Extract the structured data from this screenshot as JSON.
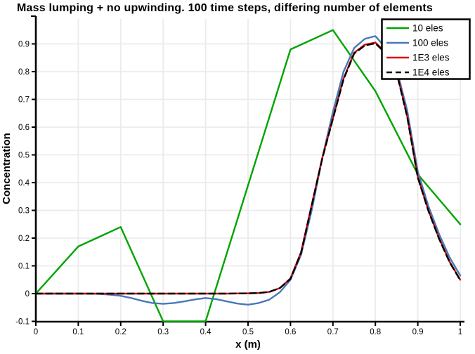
{
  "chart_data": {
    "type": "line",
    "title": "Mass lumping + no upwinding.  100 time steps, differing number of elements",
    "xlabel": "x (m)",
    "ylabel": "Concentration",
    "xlim": [
      0,
      1
    ],
    "ylim": [
      -0.1,
      1.0
    ],
    "grid": true,
    "legend_position": "top-right",
    "background_color": "#ffffff",
    "grid_color": "#ebebeb",
    "axis_color": "#000000",
    "x_ticks": [
      0,
      0.1,
      0.2,
      0.3,
      0.4,
      0.5,
      0.6,
      0.7,
      0.8,
      0.9,
      1.0
    ],
    "x_tick_labels": [
      "0",
      "0.1",
      "0.2",
      "0.3",
      "0.4",
      "0.5",
      "0.6",
      "0.7",
      "0.8",
      "0.9",
      "1"
    ],
    "y_ticks": [
      -0.1,
      0,
      0.1,
      0.2,
      0.3,
      0.4,
      0.5,
      0.6,
      0.7,
      0.8,
      0.9
    ],
    "y_tick_labels": [
      "-0.1",
      "0",
      "0.1",
      "0.2",
      "0.3",
      "0.4",
      "0.5",
      "0.6",
      "0.7",
      "0.8",
      "0.9"
    ],
    "series": [
      {
        "name": "10 eles",
        "color": "#00a400",
        "style": "solid",
        "x": [
          0,
          0.1,
          0.2,
          0.3,
          0.4,
          0.5,
          0.6,
          0.7,
          0.8,
          0.9,
          1.0
        ],
        "y": [
          0,
          0.17,
          0.24,
          -0.1,
          -0.1,
          0.39,
          0.88,
          0.95,
          0.73,
          0.43,
          0.25
        ]
      },
      {
        "name": "100 eles",
        "color": "#4878b8",
        "style": "solid",
        "x": [
          0,
          0.05,
          0.1,
          0.15,
          0.175,
          0.2,
          0.225,
          0.25,
          0.275,
          0.3,
          0.325,
          0.35,
          0.375,
          0.4,
          0.425,
          0.45,
          0.475,
          0.5,
          0.525,
          0.55,
          0.575,
          0.6,
          0.625,
          0.65,
          0.675,
          0.7,
          0.725,
          0.75,
          0.775,
          0.8,
          0.825,
          0.85,
          0.875,
          0.9,
          0.925,
          0.95,
          0.975,
          1.0
        ],
        "y": [
          0,
          0,
          0,
          -0.001,
          -0.004,
          -0.008,
          -0.016,
          -0.026,
          -0.034,
          -0.037,
          -0.034,
          -0.028,
          -0.021,
          -0.016,
          -0.02,
          -0.028,
          -0.036,
          -0.04,
          -0.034,
          -0.022,
          0.005,
          0.05,
          0.14,
          0.3,
          0.49,
          0.655,
          0.8,
          0.885,
          0.918,
          0.928,
          0.885,
          0.81,
          0.66,
          0.44,
          0.315,
          0.215,
          0.13,
          0.065
        ]
      },
      {
        "name": "1E3 eles",
        "color": "#e00000",
        "style": "solid",
        "x": [
          0,
          0.1,
          0.2,
          0.3,
          0.4,
          0.45,
          0.5,
          0.525,
          0.55,
          0.575,
          0.6,
          0.625,
          0.65,
          0.675,
          0.7,
          0.725,
          0.75,
          0.775,
          0.8,
          0.825,
          0.85,
          0.875,
          0.9,
          0.925,
          0.95,
          0.975,
          1.0
        ],
        "y": [
          0,
          0,
          0,
          0,
          0,
          0,
          0.001,
          0.002,
          0.006,
          0.02,
          0.055,
          0.15,
          0.32,
          0.49,
          0.632,
          0.775,
          0.868,
          0.897,
          0.905,
          0.868,
          0.8,
          0.64,
          0.42,
          0.3,
          0.2,
          0.115,
          0.05
        ]
      },
      {
        "name": "1E4 eles",
        "color": "#000000",
        "style": "dashed",
        "x": [
          0,
          0.1,
          0.2,
          0.3,
          0.4,
          0.45,
          0.5,
          0.525,
          0.55,
          0.575,
          0.6,
          0.625,
          0.65,
          0.675,
          0.7,
          0.725,
          0.75,
          0.775,
          0.8,
          0.825,
          0.85,
          0.875,
          0.9,
          0.925,
          0.95,
          0.975,
          1.0
        ],
        "y": [
          0,
          0,
          0,
          0,
          0,
          0,
          0.001,
          0.002,
          0.006,
          0.02,
          0.053,
          0.147,
          0.317,
          0.487,
          0.63,
          0.772,
          0.865,
          0.894,
          0.902,
          0.865,
          0.797,
          0.637,
          0.418,
          0.298,
          0.198,
          0.113,
          0.048
        ]
      }
    ]
  }
}
